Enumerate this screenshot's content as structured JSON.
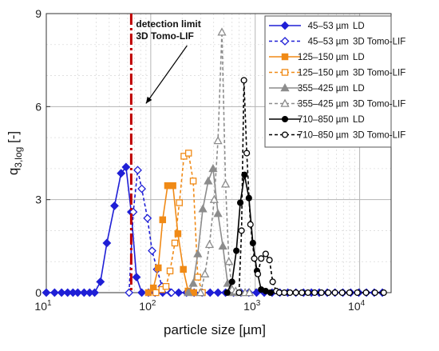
{
  "chart_data": {
    "type": "line",
    "x_scale": "log",
    "xlim": [
      10,
      20000
    ],
    "ylim": [
      0,
      9
    ],
    "xlabel": "particle size [µm]",
    "ylabel": "q",
    "ylabel_sub": "3,log",
    "ylabel_unit": " [-]",
    "x_ticks": [
      {
        "value": 10,
        "base": "10",
        "exp": "1"
      },
      {
        "value": 100,
        "base": "10",
        "exp": "2"
      },
      {
        "value": 1000,
        "base": "10",
        "exp": "3"
      },
      {
        "value": 10000,
        "base": "10",
        "exp": "4"
      }
    ],
    "y_ticks": [
      {
        "value": 0,
        "label": "0"
      },
      {
        "value": 3,
        "label": "3"
      },
      {
        "value": 6,
        "label": "6"
      },
      {
        "value": 9,
        "label": "9"
      }
    ],
    "grid": true,
    "legend_position": "top-right",
    "annotation": {
      "lines": [
        "detection limit",
        "3D Tomo-LIF"
      ],
      "x": 65,
      "arrow_to": [
        90,
        6.1
      ],
      "color": "#c00000"
    },
    "series": [
      {
        "name": "45–53 µm",
        "method": "LD",
        "color": "#1f1fd6",
        "marker": "diamond",
        "filled": true,
        "dashed": false,
        "points": [
          [
            10,
            0
          ],
          [
            12,
            0
          ],
          [
            14,
            0
          ],
          [
            16,
            0
          ],
          [
            18,
            0
          ],
          [
            20,
            0
          ],
          [
            23,
            0
          ],
          [
            26,
            0
          ],
          [
            29,
            0
          ],
          [
            33,
            0.35
          ],
          [
            38,
            1.6
          ],
          [
            45,
            2.8
          ],
          [
            52,
            3.85
          ],
          [
            58,
            4.05
          ],
          [
            65,
            2.6
          ],
          [
            73,
            0.5
          ],
          [
            82,
            0
          ],
          [
            95,
            0
          ],
          [
            110,
            0
          ],
          [
            130,
            0
          ],
          [
            155,
            0
          ],
          [
            185,
            0
          ],
          [
            220,
            0
          ],
          [
            260,
            0
          ],
          [
            310,
            0
          ],
          [
            370,
            0
          ],
          [
            440,
            0
          ],
          [
            520,
            0
          ],
          [
            620,
            0
          ],
          [
            730,
            0
          ],
          [
            870,
            0
          ],
          [
            1030,
            0
          ],
          [
            1220,
            0
          ],
          [
            1450,
            0
          ],
          [
            1720,
            0
          ],
          [
            2050,
            0
          ],
          [
            2450,
            0
          ],
          [
            2900,
            0
          ],
          [
            3450,
            0
          ],
          [
            4100,
            0
          ],
          [
            4900,
            0
          ],
          [
            5800,
            0
          ],
          [
            6900,
            0
          ],
          [
            8200,
            0
          ],
          [
            9800,
            0
          ],
          [
            11600,
            0
          ],
          [
            13800,
            0
          ],
          [
            16500,
            0
          ]
        ]
      },
      {
        "name": "45–53 µm",
        "method": "3D Tomo-LIF",
        "color": "#1f1fd6",
        "marker": "diamond",
        "filled": false,
        "dashed": true,
        "points": [
          [
            62,
            0
          ],
          [
            68,
            2.6
          ],
          [
            75,
            3.95
          ],
          [
            82,
            3.35
          ],
          [
            93,
            2.4
          ],
          [
            103,
            1.35
          ],
          [
            115,
            0.75
          ],
          [
            128,
            0.2
          ],
          [
            142,
            0.1
          ],
          [
            158,
            0
          ]
        ]
      },
      {
        "name": "125–150 µm",
        "method": "LD",
        "color": "#f08a16",
        "marker": "square",
        "filled": true,
        "dashed": false,
        "points": [
          [
            95,
            0
          ],
          [
            106,
            0.15
          ],
          [
            118,
            0.8
          ],
          [
            130,
            2.35
          ],
          [
            145,
            3.45
          ],
          [
            163,
            3.45
          ],
          [
            182,
            1.9
          ],
          [
            205,
            0.75
          ],
          [
            228,
            0.05
          ],
          [
            258,
            0
          ]
        ]
      },
      {
        "name": "125–150 µm",
        "method": "3D Tomo-LIF",
        "color": "#f08a16",
        "marker": "square",
        "filled": false,
        "dashed": true,
        "points": [
          [
            112,
            0
          ],
          [
            128,
            0.1
          ],
          [
            140,
            0.2
          ],
          [
            153,
            0.7
          ],
          [
            170,
            1.6
          ],
          [
            188,
            2.9
          ],
          [
            208,
            4.4
          ],
          [
            230,
            4.5
          ],
          [
            255,
            3.6
          ],
          [
            282,
            0.5
          ],
          [
            312,
            0
          ]
        ]
      },
      {
        "name": "355–425 µm",
        "method": "LD",
        "color": "#8c8c8c",
        "marker": "triangle",
        "filled": true,
        "dashed": false,
        "points": [
          [
            228,
            0
          ],
          [
            255,
            0.3
          ],
          [
            282,
            1.25
          ],
          [
            315,
            2.7
          ],
          [
            355,
            3.6
          ],
          [
            395,
            4.0
          ],
          [
            440,
            2.55
          ],
          [
            490,
            1.5
          ],
          [
            545,
            0.3
          ],
          [
            610,
            0
          ]
        ]
      },
      {
        "name": "355–425 µm",
        "method": "3D Tomo-LIF",
        "color": "#8c8c8c",
        "marker": "triangle",
        "filled": false,
        "dashed": true,
        "points": [
          [
            300,
            0
          ],
          [
            330,
            0.6
          ],
          [
            365,
            1.55
          ],
          [
            405,
            3.0
          ],
          [
            440,
            4.9
          ],
          [
            480,
            8.4
          ],
          [
            520,
            3.5
          ],
          [
            560,
            1.0
          ],
          [
            600,
            0.1
          ],
          [
            650,
            0.05
          ],
          [
            720,
            0
          ],
          [
            800,
            0
          ],
          [
            880,
            0
          ]
        ]
      },
      {
        "name": "710–850 µm",
        "method": "LD",
        "color": "#000000",
        "marker": "circle",
        "filled": true,
        "dashed": false,
        "points": [
          [
            540,
            0
          ],
          [
            600,
            0.35
          ],
          [
            660,
            1.35
          ],
          [
            720,
            2.9
          ],
          [
            790,
            3.8
          ],
          [
            870,
            3.05
          ],
          [
            950,
            1.6
          ],
          [
            1040,
            0.7
          ],
          [
            1140,
            0.1
          ],
          [
            1260,
            0.05
          ],
          [
            1400,
            0
          ]
        ]
      },
      {
        "name": "710–850 µm",
        "method": "3D Tomo-LIF",
        "color": "#000000",
        "marker": "circle",
        "filled": false,
        "dashed": true,
        "points": [
          [
            700,
            0
          ],
          [
            740,
            2.0
          ],
          [
            780,
            6.85
          ],
          [
            830,
            4.5
          ],
          [
            900,
            2.2
          ],
          [
            980,
            1.1
          ],
          [
            1060,
            0.6
          ],
          [
            1140,
            1.1
          ],
          [
            1260,
            1.25
          ],
          [
            1370,
            1.05
          ],
          [
            1470,
            0.35
          ],
          [
            1590,
            0.05
          ],
          [
            1700,
            0
          ],
          [
            1900,
            0
          ],
          [
            2150,
            0
          ],
          [
            2450,
            0
          ],
          [
            2800,
            0
          ],
          [
            3200,
            0
          ],
          [
            3700,
            0
          ],
          [
            4300,
            0
          ],
          [
            5000,
            0
          ],
          [
            5800,
            0
          ],
          [
            6800,
            0
          ],
          [
            8000,
            0
          ],
          [
            9500,
            0
          ],
          [
            11500,
            0
          ],
          [
            14000,
            0
          ],
          [
            17000,
            0
          ]
        ]
      }
    ]
  }
}
